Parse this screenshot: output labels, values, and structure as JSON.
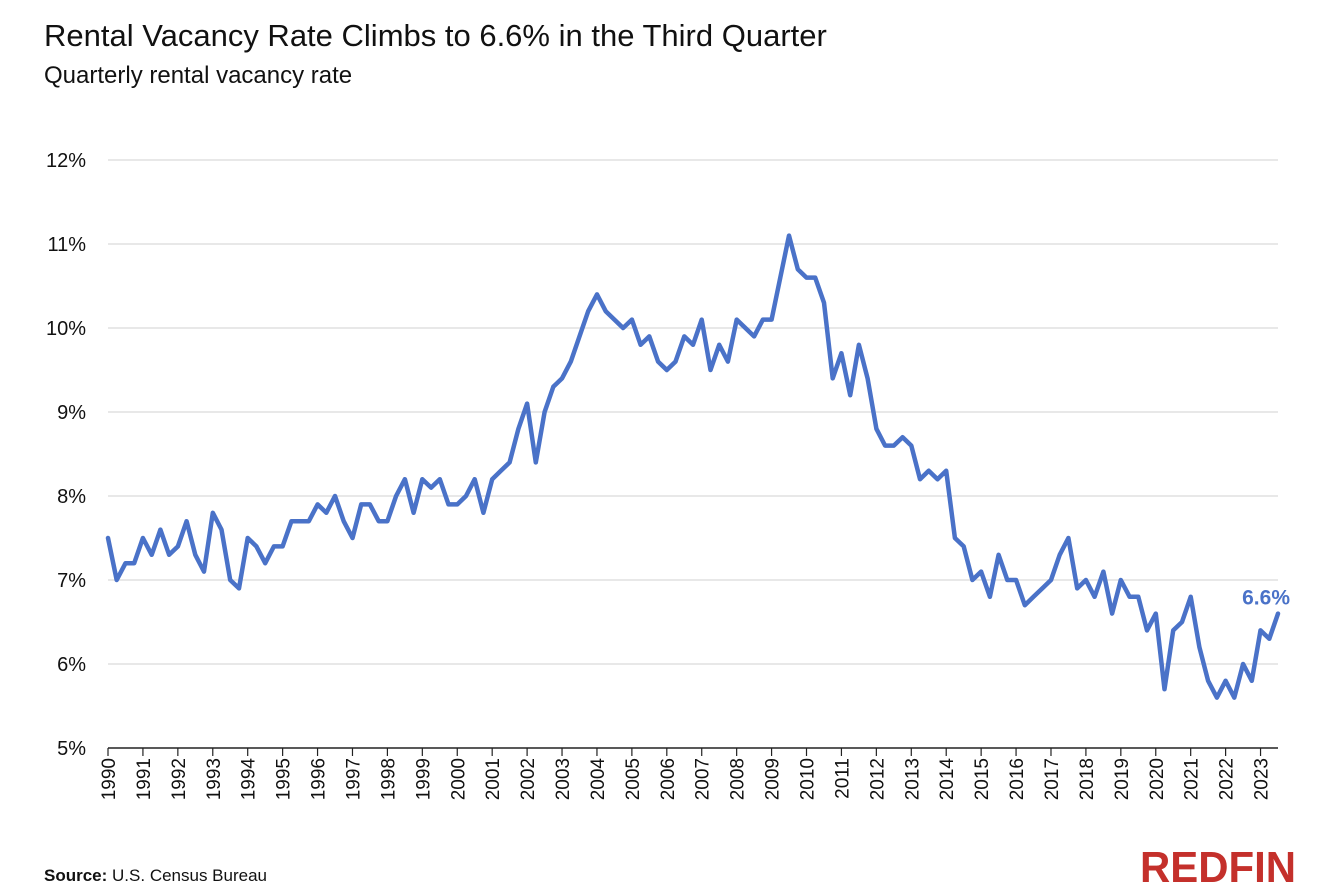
{
  "title": "Rental Vacancy Rate Climbs to 6.6% in the Third Quarter",
  "subtitle": "Quarterly rental vacancy rate",
  "source_label": "Source:",
  "source_text": "U.S. Census Bureau",
  "logo_text": "REDFIN",
  "colors": {
    "line": "#4a72c8",
    "grid": "#d9d9d9",
    "axis": "#222222",
    "brand": "#c4302b"
  },
  "chart_data": {
    "type": "line",
    "title": "Rental Vacancy Rate Climbs to 6.6% in the Third Quarter",
    "subtitle": "Quarterly rental vacancy rate",
    "xlabel": "",
    "ylabel": "",
    "ylim": [
      5,
      12
    ],
    "xlim": [
      1990,
      2023.5
    ],
    "y_ticks": [
      5,
      6,
      7,
      8,
      9,
      10,
      11,
      12
    ],
    "y_tick_labels": [
      "5%",
      "6%",
      "7%",
      "8%",
      "9%",
      "10%",
      "11%",
      "12%"
    ],
    "x_ticks": [
      "1990",
      "1991",
      "1992",
      "1993",
      "1994",
      "1995",
      "1996",
      "1997",
      "1998",
      "1999",
      "2000",
      "2001",
      "2002",
      "2003",
      "2004",
      "2005",
      "2006",
      "2007",
      "2008",
      "2009",
      "2010",
      "2011",
      "2012",
      "2013",
      "2014",
      "2015",
      "2016",
      "2017",
      "2018",
      "2019",
      "2020",
      "2021",
      "2022",
      "2023"
    ],
    "grid": true,
    "annotation": {
      "text": "6.6%",
      "x": 2023.5,
      "y": 6.6
    },
    "series": [
      {
        "x_start": 1990,
        "step": 0.25,
        "values": [
          7.5,
          7.0,
          7.2,
          7.2,
          7.5,
          7.3,
          7.6,
          7.3,
          7.4,
          7.7,
          7.3,
          7.1,
          7.8,
          7.6,
          7.0,
          6.9,
          7.5,
          7.4,
          7.2,
          7.4,
          7.4,
          7.7,
          7.7,
          7.7,
          7.9,
          7.8,
          8.0,
          7.7,
          7.5,
          7.9,
          7.9,
          7.7,
          7.7,
          8.0,
          8.2,
          7.8,
          8.2,
          8.1,
          8.2,
          7.9,
          7.9,
          8.0,
          8.2,
          7.8,
          8.2,
          8.3,
          8.4,
          8.8,
          9.1,
          8.4,
          9.0,
          9.3,
          9.4,
          9.6,
          9.9,
          10.2,
          10.4,
          10.2,
          10.1,
          10.0,
          10.1,
          9.8,
          9.9,
          9.6,
          9.5,
          9.6,
          9.9,
          9.8,
          10.1,
          9.5,
          9.8,
          9.6,
          10.1,
          10.0,
          9.9,
          10.1,
          10.1,
          10.6,
          11.1,
          10.7,
          10.6,
          10.6,
          10.3,
          9.4,
          9.7,
          9.2,
          9.8,
          9.4,
          8.8,
          8.6,
          8.6,
          8.7,
          8.6,
          8.2,
          8.3,
          8.2,
          8.3,
          7.5,
          7.4,
          7.0,
          7.1,
          6.8,
          7.3,
          7.0,
          7.0,
          6.7,
          6.8,
          6.9,
          7.0,
          7.3,
          7.5,
          6.9,
          7.0,
          6.8,
          7.1,
          6.6,
          7.0,
          6.8,
          6.8,
          6.4,
          6.6,
          5.7,
          6.4,
          6.5,
          6.8,
          6.2,
          5.8,
          5.6,
          5.8,
          5.6,
          6.0,
          5.8,
          6.4,
          6.3,
          6.6
        ]
      }
    ]
  }
}
